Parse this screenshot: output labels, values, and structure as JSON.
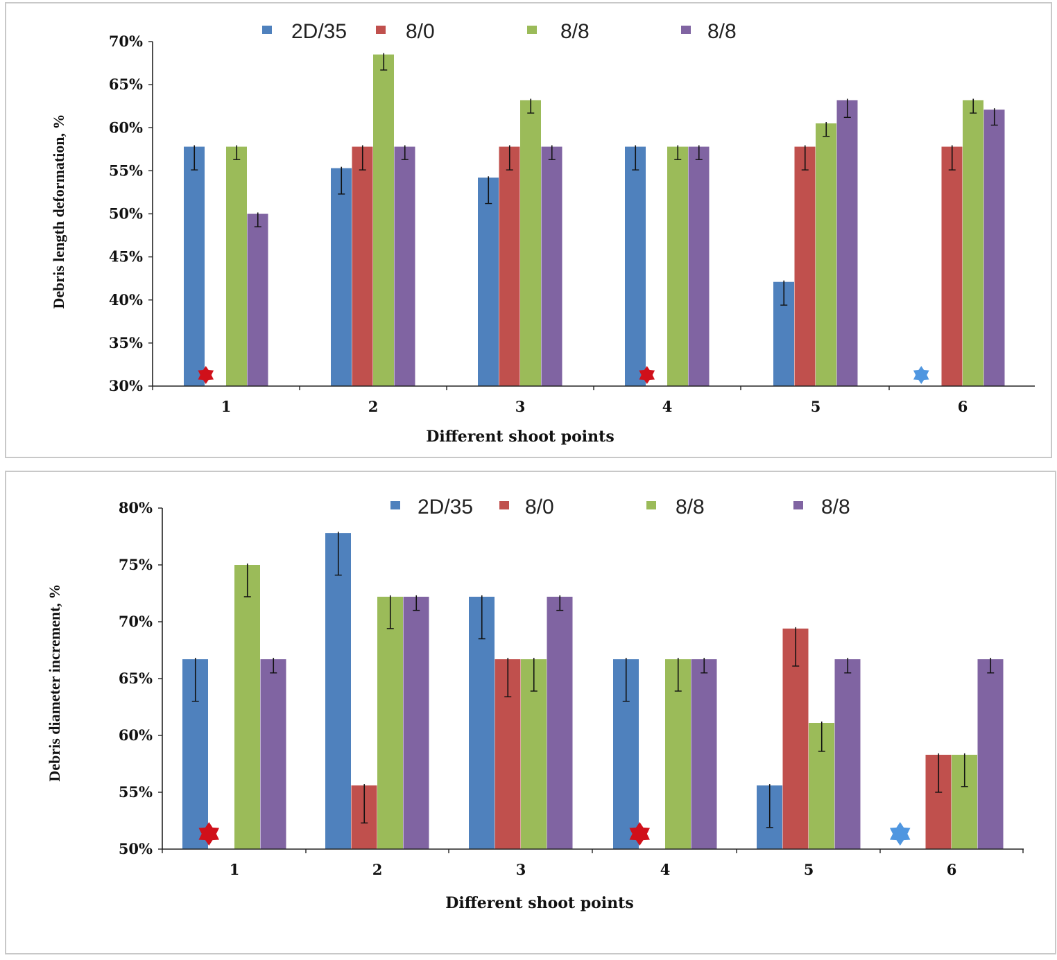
{
  "colors": {
    "series": [
      "#4F81BD",
      "#C0504D",
      "#9BBB59",
      "#8064A2"
    ],
    "star_red": "#D0101A",
    "star_blue": "#4F96E0",
    "panel_border": "#C8C8C8"
  },
  "chart_data": [
    {
      "type": "bar",
      "title": "",
      "xlabel": "Different shoot points",
      "ylabel": "Debris length deformation, %",
      "categories": [
        "1",
        "2",
        "3",
        "4",
        "5",
        "6"
      ],
      "ylim": [
        0.3,
        0.7
      ],
      "yticks": [
        "30%",
        "35%",
        "40%",
        "45%",
        "50%",
        "55%",
        "60%",
        "65%",
        "70%"
      ],
      "legend": {
        "position": "top",
        "labels": [
          "2D/35",
          "8/0",
          "8/8",
          "8/8"
        ]
      },
      "series": [
        {
          "name": "2D/35",
          "values": [
            0.578,
            0.553,
            0.542,
            0.578,
            0.421,
            null
          ],
          "errors": [
            0.027,
            0.03,
            0.03,
            0.027,
            0.027,
            null
          ]
        },
        {
          "name": "8/0",
          "values": [
            null,
            0.578,
            0.578,
            null,
            0.578,
            0.578
          ],
          "errors": [
            null,
            0.027,
            0.027,
            null,
            0.027,
            0.027
          ]
        },
        {
          "name": "8/8",
          "values": [
            0.578,
            0.685,
            0.632,
            0.578,
            0.605,
            0.632
          ],
          "errors": [
            0.015,
            0.018,
            0.015,
            0.015,
            0.015,
            0.015
          ]
        },
        {
          "name": "8/8",
          "values": [
            0.5,
            0.578,
            0.578,
            0.578,
            0.632,
            0.621
          ],
          "errors": [
            0.015,
            0.015,
            0.015,
            0.015,
            0.02,
            0.018
          ]
        }
      ],
      "markers": [
        {
          "category": "1",
          "series": "8/0",
          "symbol": "star",
          "color": "red"
        },
        {
          "category": "4",
          "series": "8/0",
          "symbol": "star",
          "color": "red"
        },
        {
          "category": "6",
          "series": "2D/35",
          "symbol": "star",
          "color": "blue"
        }
      ]
    },
    {
      "type": "bar",
      "title": "",
      "xlabel": "Different shoot points",
      "ylabel": "Debris diameter increment, %",
      "categories": [
        "1",
        "2",
        "3",
        "4",
        "5",
        "6"
      ],
      "ylim": [
        0.5,
        0.8
      ],
      "yticks": [
        "50%",
        "55%",
        "60%",
        "65%",
        "70%",
        "75%",
        "80%"
      ],
      "legend": {
        "position": "top",
        "labels": [
          "2D/35",
          "8/0",
          "8/8",
          "8/8"
        ]
      },
      "series": [
        {
          "name": "2D/35",
          "values": [
            0.667,
            0.778,
            0.722,
            0.667,
            0.556,
            null
          ],
          "errors": [
            0.037,
            0.037,
            0.037,
            0.037,
            0.037,
            null
          ]
        },
        {
          "name": "8/0",
          "values": [
            null,
            0.556,
            0.667,
            null,
            0.694,
            0.583
          ],
          "errors": [
            null,
            0.033,
            0.033,
            null,
            0.033,
            0.033
          ]
        },
        {
          "name": "8/8",
          "values": [
            0.75,
            0.722,
            0.667,
            0.667,
            0.611,
            0.583
          ],
          "errors": [
            0.028,
            0.028,
            0.028,
            0.028,
            0.025,
            0.028
          ]
        },
        {
          "name": "8/8",
          "values": [
            0.667,
            0.722,
            0.722,
            0.667,
            0.667,
            0.667
          ],
          "errors": [
            0.012,
            0.012,
            0.012,
            0.012,
            0.012,
            0.012
          ]
        }
      ],
      "markers": [
        {
          "category": "1",
          "series": "8/0",
          "symbol": "star",
          "color": "red"
        },
        {
          "category": "4",
          "series": "8/0",
          "symbol": "star",
          "color": "red"
        },
        {
          "category": "6",
          "series": "2D/35",
          "symbol": "star",
          "color": "blue"
        }
      ]
    }
  ]
}
